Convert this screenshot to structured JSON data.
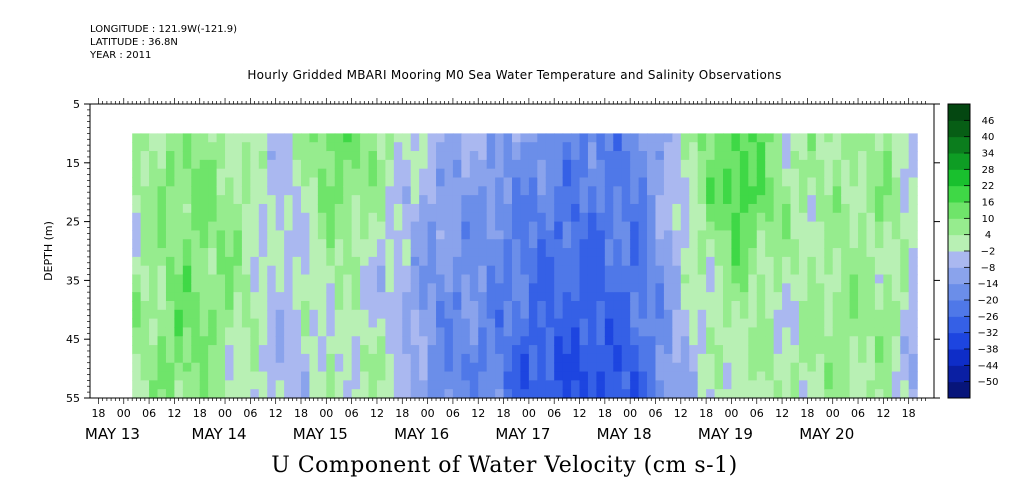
{
  "header": {
    "longitude": "LONGITUDE : 121.9W(-121.9)",
    "latitude": "LATITUDE : 36.8N",
    "year": "YEAR : 2011"
  },
  "chart_data": {
    "type": "heatmap",
    "title": "Hourly Gridded MBARI Mooring M0 Sea Water Temperature and Salinity Observations",
    "xlabel": "U Component of Water Velocity (cm s-1)",
    "ylabel": "DEPTH (m)",
    "ylim": [
      55,
      5
    ],
    "y_ticks": [
      5,
      15,
      25,
      35,
      45,
      55
    ],
    "x_hours": [
      "18",
      "00",
      "06",
      "12",
      "18",
      "00",
      "06",
      "12",
      "18",
      "00",
      "06",
      "12",
      "18",
      "00",
      "06",
      "12",
      "18",
      "00",
      "06",
      "12",
      "18",
      "00",
      "06",
      "12",
      "18",
      "00",
      "06",
      "12",
      "18",
      "00",
      "06",
      "12",
      "18"
    ],
    "x_days": [
      "MAY 13",
      "MAY 14",
      "MAY 15",
      "MAY 16",
      "MAY 17",
      "MAY 18",
      "MAY 19",
      "MAY 20"
    ],
    "colorbar_levels": [
      -50,
      -44,
      -38,
      -32,
      -26,
      -20,
      -14,
      -8,
      -2,
      4,
      10,
      16,
      22,
      28,
      34,
      40,
      46
    ],
    "colorbar_colors": [
      "#07157a",
      "#0a1fa3",
      "#0e2dc8",
      "#1d45e0",
      "#3560e6",
      "#4f78e8",
      "#6b8ee9",
      "#8aa3ec",
      "#aab8f0",
      "#b8f0b4",
      "#96ec8e",
      "#6fe46a",
      "#3fd846",
      "#19c02e",
      "#0e9d24",
      "#0b7d1d",
      "#075e15",
      "#044711"
    ],
    "data_start_hour_from_may13_18": 8,
    "data_end_hour_from_may13_18": 194,
    "u_velocity_grid_cm_s": {
      "depths_m": [
        10,
        20,
        30,
        40,
        50,
        55
      ],
      "hour_columns": [
        8,
        20,
        32,
        44,
        56,
        68,
        80,
        92,
        104,
        116,
        128,
        140,
        152,
        164,
        176,
        188,
        194
      ],
      "values": [
        [
          2,
          8,
          4,
          -4,
          16,
          6,
          -6,
          -10,
          -14,
          -20,
          -18,
          4,
          18,
          2,
          6,
          4,
          -2
        ],
        [
          4,
          12,
          6,
          -6,
          12,
          2,
          -10,
          -14,
          -20,
          -22,
          -20,
          2,
          22,
          4,
          4,
          8,
          -2
        ],
        [
          2,
          10,
          8,
          -6,
          6,
          -2,
          -14,
          -16,
          -24,
          -26,
          -22,
          0,
          12,
          2,
          6,
          4,
          -4
        ],
        [
          4,
          12,
          6,
          -4,
          2,
          -4,
          -16,
          -18,
          -26,
          -28,
          -24,
          -2,
          4,
          -2,
          8,
          6,
          -6
        ],
        [
          4,
          14,
          2,
          -6,
          0,
          4,
          -18,
          -20,
          -30,
          -32,
          -28,
          -4,
          4,
          4,
          6,
          2,
          -8
        ],
        [
          2,
          8,
          2,
          -4,
          0,
          2,
          -16,
          -18,
          -30,
          -34,
          -28,
          -6,
          2,
          0,
          4,
          2,
          -6
        ]
      ]
    }
  }
}
